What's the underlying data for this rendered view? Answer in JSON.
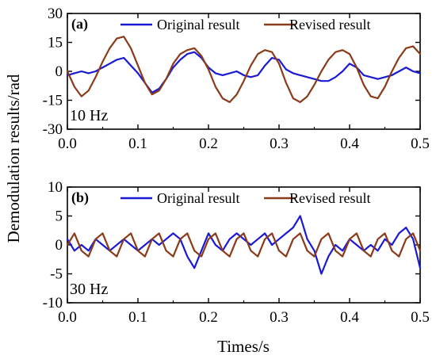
{
  "ylabel": "Demodulation results/rad",
  "xlabel": "Times/s",
  "colors": {
    "original": "#1a1ad6",
    "revised": "#8b3a1a"
  },
  "chart_data": [
    {
      "type": "line",
      "panel_label": "(a)",
      "annotation": "10 Hz",
      "xlim": [
        0.0,
        0.5
      ],
      "ylim": [
        -30,
        30
      ],
      "xticks": [
        0.0,
        0.1,
        0.2,
        0.3,
        0.4,
        0.5
      ],
      "xtick_labels": [
        "0.0",
        "0.1",
        "0.2",
        "0.3",
        "0.4",
        "0.5"
      ],
      "yticks": [
        -30,
        -15,
        0,
        15,
        30
      ],
      "ytick_labels": [
        "-30",
        "-15",
        "0",
        "15",
        "30"
      ],
      "legend_position": "top-right",
      "series": [
        {
          "name": "Original result",
          "color": "#1a1ad6",
          "x": [
            0.0,
            0.01,
            0.02,
            0.03,
            0.04,
            0.05,
            0.06,
            0.07,
            0.08,
            0.09,
            0.1,
            0.11,
            0.12,
            0.13,
            0.14,
            0.15,
            0.16,
            0.17,
            0.18,
            0.19,
            0.2,
            0.21,
            0.22,
            0.23,
            0.24,
            0.25,
            0.26,
            0.27,
            0.28,
            0.29,
            0.3,
            0.31,
            0.32,
            0.33,
            0.34,
            0.35,
            0.36,
            0.37,
            0.38,
            0.39,
            0.4,
            0.41,
            0.42,
            0.43,
            0.44,
            0.45,
            0.46,
            0.47,
            0.48,
            0.49,
            0.5
          ],
          "y": [
            -2,
            -1,
            0,
            -1,
            0,
            2,
            4,
            6,
            7,
            3,
            -1,
            -6,
            -11,
            -9,
            -4,
            2,
            6,
            9,
            10,
            7,
            2,
            -1,
            -2,
            -1,
            0,
            -2,
            -3,
            -2,
            3,
            7,
            6,
            1,
            -1,
            -2,
            -3,
            -4,
            -5,
            -5,
            -3,
            0,
            4,
            2,
            -2,
            -3,
            -4,
            -3,
            -2,
            0,
            2,
            0,
            -1
          ]
        },
        {
          "name": "Revised result",
          "color": "#8b3a1a",
          "x": [
            0.0,
            0.01,
            0.02,
            0.03,
            0.04,
            0.05,
            0.06,
            0.07,
            0.08,
            0.09,
            0.1,
            0.11,
            0.12,
            0.13,
            0.14,
            0.15,
            0.16,
            0.17,
            0.18,
            0.19,
            0.2,
            0.21,
            0.22,
            0.23,
            0.24,
            0.25,
            0.26,
            0.27,
            0.28,
            0.29,
            0.3,
            0.31,
            0.32,
            0.33,
            0.34,
            0.35,
            0.36,
            0.37,
            0.38,
            0.39,
            0.4,
            0.41,
            0.42,
            0.43,
            0.44,
            0.45,
            0.46,
            0.47,
            0.48,
            0.49,
            0.5
          ],
          "y": [
            0,
            -8,
            -13,
            -10,
            -3,
            5,
            12,
            17,
            18,
            12,
            3,
            -6,
            -12,
            -10,
            -4,
            4,
            9,
            11,
            12,
            8,
            1,
            -8,
            -14,
            -16,
            -12,
            -5,
            3,
            9,
            11,
            10,
            4,
            -6,
            -14,
            -16,
            -13,
            -7,
            0,
            6,
            10,
            11,
            9,
            2,
            -7,
            -13,
            -14,
            -8,
            0,
            7,
            12,
            13,
            9
          ]
        }
      ]
    },
    {
      "type": "line",
      "panel_label": "(b)",
      "annotation": "30 Hz",
      "xlim": [
        0.0,
        0.5
      ],
      "ylim": [
        -10,
        10
      ],
      "xticks": [
        0.0,
        0.1,
        0.2,
        0.3,
        0.4,
        0.5
      ],
      "xtick_labels": [
        "0.0",
        "0.1",
        "0.2",
        "0.3",
        "0.4",
        "0.5"
      ],
      "yticks": [
        -10,
        -5,
        0,
        5,
        10
      ],
      "ytick_labels": [
        "-10",
        "-5",
        "0",
        "5",
        "10"
      ],
      "legend_position": "top-right",
      "series": [
        {
          "name": "Original result",
          "color": "#1a1ad6",
          "x": [
            0.0,
            0.01,
            0.02,
            0.03,
            0.04,
            0.05,
            0.06,
            0.07,
            0.08,
            0.09,
            0.1,
            0.11,
            0.12,
            0.13,
            0.14,
            0.15,
            0.16,
            0.17,
            0.18,
            0.19,
            0.2,
            0.21,
            0.22,
            0.23,
            0.24,
            0.25,
            0.26,
            0.27,
            0.28,
            0.29,
            0.3,
            0.31,
            0.32,
            0.33,
            0.34,
            0.35,
            0.36,
            0.37,
            0.38,
            0.39,
            0.4,
            0.41,
            0.42,
            0.43,
            0.44,
            0.45,
            0.46,
            0.47,
            0.48,
            0.49,
            0.5
          ],
          "y": [
            1,
            -1,
            0,
            -1,
            1,
            0,
            -1,
            0,
            1,
            0,
            -1,
            0,
            1,
            0,
            1,
            2,
            1,
            -2,
            -4,
            -1,
            2,
            0,
            -1,
            1,
            2,
            1,
            0,
            1,
            2,
            0,
            1,
            2,
            3,
            5,
            1,
            -1,
            -5,
            -2,
            0,
            -1,
            1,
            0,
            -1,
            0,
            -1,
            1,
            0,
            2,
            3,
            1,
            -4
          ]
        },
        {
          "name": "Revised result",
          "color": "#8b3a1a",
          "x": [
            0.0,
            0.01,
            0.02,
            0.03,
            0.04,
            0.05,
            0.06,
            0.07,
            0.08,
            0.09,
            0.1,
            0.11,
            0.12,
            0.13,
            0.14,
            0.15,
            0.16,
            0.17,
            0.18,
            0.19,
            0.2,
            0.21,
            0.22,
            0.23,
            0.24,
            0.25,
            0.26,
            0.27,
            0.28,
            0.29,
            0.3,
            0.31,
            0.32,
            0.33,
            0.34,
            0.35,
            0.36,
            0.37,
            0.38,
            0.39,
            0.4,
            0.41,
            0.42,
            0.43,
            0.44,
            0.45,
            0.46,
            0.47,
            0.48,
            0.49,
            0.5
          ],
          "y": [
            0,
            2,
            -1,
            -2,
            1,
            2,
            -1,
            -2,
            1,
            2,
            -1,
            -2,
            1,
            2,
            -1,
            -2,
            1,
            2,
            -1,
            -2,
            1,
            2,
            -1,
            -2,
            1,
            2,
            -1,
            -2,
            1,
            2,
            -1,
            -2,
            1,
            2,
            -1,
            -2,
            1,
            2,
            -1,
            -2,
            1,
            2,
            -1,
            -2,
            1,
            2,
            -1,
            -2,
            1,
            2,
            -1
          ]
        }
      ]
    }
  ]
}
